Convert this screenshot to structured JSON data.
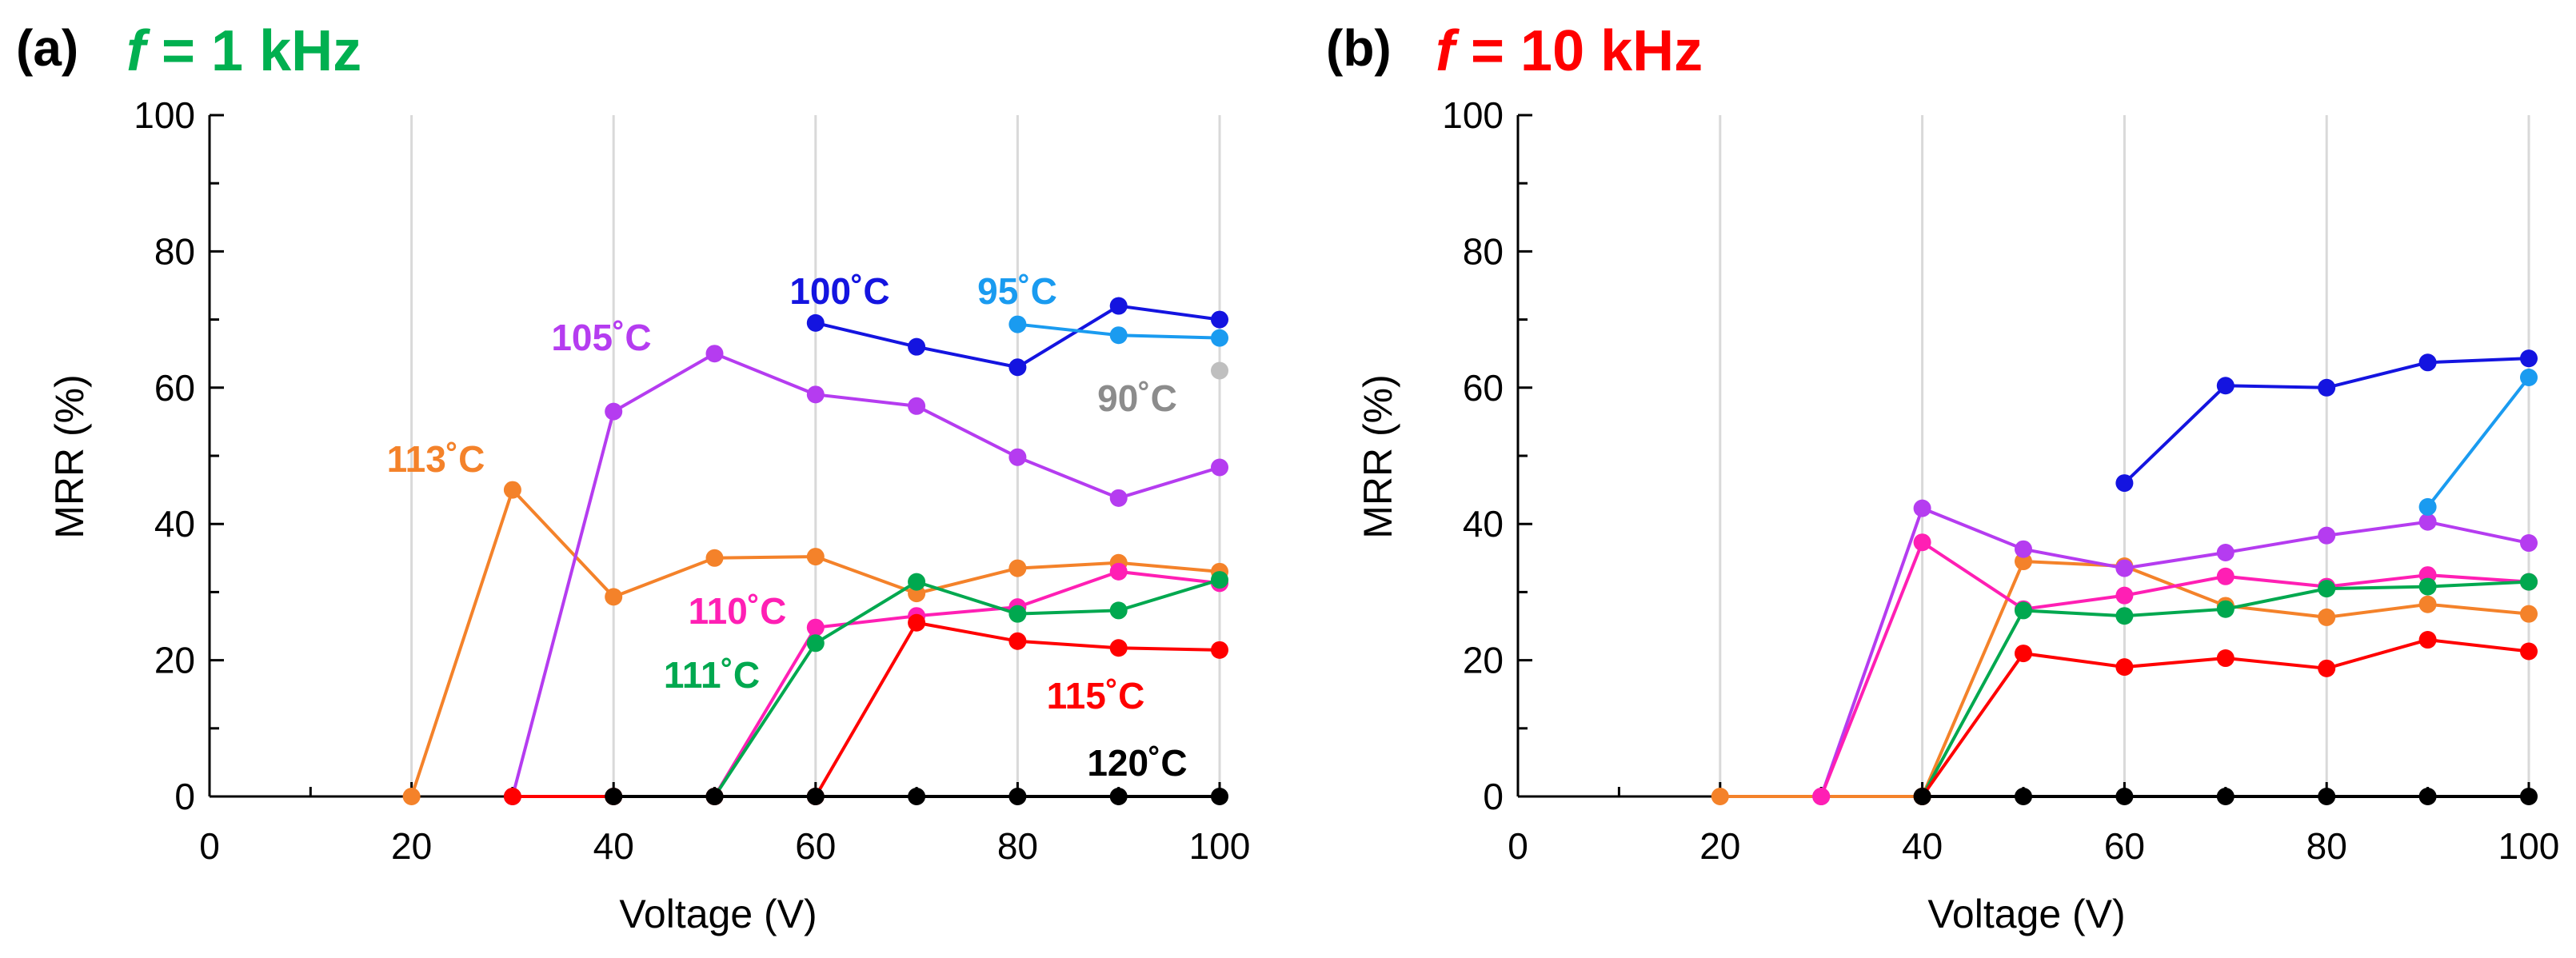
{
  "chart_data": [
    {
      "type": "line",
      "panel_label": "(a)",
      "title": {
        "f": "f",
        "rest": " = 1 kHz",
        "color": "#00b050"
      },
      "xlabel": "Voltage (V)",
      "ylabel": "MRR (%)",
      "xlim": [
        0,
        100
      ],
      "ylim": [
        0,
        100
      ],
      "xticks": [
        "0",
        "20",
        "40",
        "60",
        "80",
        "100"
      ],
      "yticks": [
        "0",
        "20",
        "40",
        "60",
        "80",
        "100"
      ],
      "grid": "x-major",
      "series": [
        {
          "name": "113˚C",
          "color": "#f4822a",
          "x": [
            20,
            30,
            40,
            50,
            60,
            70,
            80,
            90,
            100
          ],
          "y": [
            0,
            45,
            29.3,
            35,
            35.2,
            29.8,
            33.5,
            34.3,
            33
          ]
        },
        {
          "name": "105˚C",
          "color": "#b53cf0",
          "x": [
            30,
            40,
            50,
            60,
            70,
            80,
            90,
            100
          ],
          "y": [
            0,
            56.5,
            65,
            59,
            57.3,
            49.8,
            43.8,
            48.3
          ]
        },
        {
          "name": "110˚C",
          "color": "#ff1fb4",
          "x": [
            50,
            60,
            70,
            80,
            90,
            100
          ],
          "y": [
            0,
            24.8,
            26.5,
            27.8,
            33,
            31.3
          ]
        },
        {
          "name": "111˚C",
          "color": "#00a84f",
          "x": [
            50,
            60,
            70,
            80,
            90,
            100
          ],
          "y": [
            0,
            22.5,
            31.5,
            26.8,
            27.3,
            31.8
          ]
        },
        {
          "name": "115˚C",
          "color": "#ff0000",
          "x": [
            30,
            40,
            50,
            60,
            70,
            80,
            90,
            100
          ],
          "y": [
            0,
            0,
            0,
            0,
            25.5,
            22.8,
            21.8,
            21.5
          ]
        },
        {
          "name": "100˚C",
          "color": "#1414e0",
          "x": [
            60,
            70,
            80,
            90,
            100
          ],
          "y": [
            69.5,
            66,
            63,
            72,
            70
          ]
        },
        {
          "name": "95˚C",
          "color": "#1a9bf0",
          "x": [
            80,
            90,
            100
          ],
          "y": [
            69.3,
            67.7,
            67.3
          ]
        },
        {
          "name": "90˚C",
          "color": "#8c8c8c",
          "x": [
            100
          ],
          "y": [
            62.5
          ]
        },
        {
          "name": "120˚C",
          "color": "#000000",
          "x": [
            40,
            50,
            60,
            70,
            80,
            90,
            100
          ],
          "y": [
            0,
            0,
            0,
            0,
            0,
            0,
            0
          ]
        }
      ]
    },
    {
      "type": "line",
      "panel_label": "(b)",
      "title": {
        "f": "f",
        "rest": " = 10 kHz",
        "color": "#ff0000"
      },
      "xlabel": "Voltage (V)",
      "ylabel": "MRR (%)",
      "xlim": [
        0,
        100
      ],
      "ylim": [
        0,
        100
      ],
      "xticks": [
        "0",
        "20",
        "40",
        "60",
        "80",
        "100"
      ],
      "yticks": [
        "0",
        "20",
        "40",
        "60",
        "80",
        "100"
      ],
      "grid": "x-major",
      "series": [
        {
          "color": "#f4822a",
          "x": [
            20,
            30,
            40,
            50,
            60,
            70,
            80,
            90,
            100
          ],
          "y": [
            0,
            0,
            0,
            34.5,
            33.8,
            28,
            26.3,
            28.2,
            26.8
          ]
        },
        {
          "color": "#b53cf0",
          "x": [
            30,
            40,
            50,
            60,
            70,
            80,
            90,
            100
          ],
          "y": [
            0,
            42.3,
            36.3,
            33.5,
            35.8,
            38.3,
            40.3,
            37.2
          ]
        },
        {
          "color": "#ff1fb4",
          "x": [
            30,
            40,
            50,
            60,
            70,
            80,
            90,
            100
          ],
          "y": [
            0,
            37.3,
            27.5,
            29.5,
            32.3,
            30.8,
            32.5,
            31.5
          ]
        },
        {
          "color": "#00a84f",
          "x": [
            40,
            50,
            60,
            70,
            80,
            90,
            100
          ],
          "y": [
            0,
            27.3,
            26.5,
            27.5,
            30.5,
            30.8,
            31.5
          ]
        },
        {
          "color": "#ff0000",
          "x": [
            40,
            50,
            60,
            70,
            80,
            90,
            100
          ],
          "y": [
            0,
            21,
            19,
            20.3,
            18.8,
            23,
            21.3
          ]
        },
        {
          "color": "#1414e0",
          "x": [
            60,
            70,
            80,
            90,
            100
          ],
          "y": [
            46,
            60.3,
            60,
            63.7,
            64.3
          ]
        },
        {
          "color": "#1a9bf0",
          "x": [
            90,
            100
          ],
          "y": [
            42.5,
            61.5
          ]
        },
        {
          "color": "#000000",
          "x": [
            40,
            50,
            60,
            70,
            80,
            90,
            100
          ],
          "y": [
            0,
            0,
            0,
            0,
            0,
            0,
            0
          ]
        }
      ]
    }
  ]
}
